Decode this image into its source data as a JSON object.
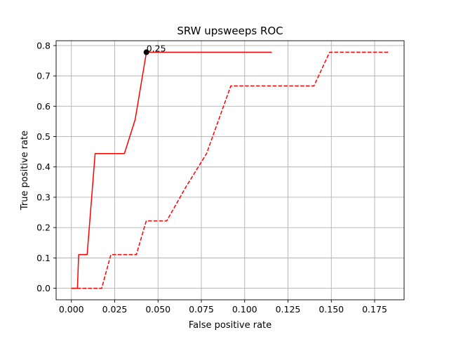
{
  "chart_data": {
    "type": "line",
    "title": "SRW upsweeps ROC",
    "xlabel": "False positive rate",
    "ylabel": "True positive rate",
    "xlim": [
      -0.0088,
      0.192
    ],
    "ylim": [
      -0.038,
      0.816
    ],
    "grid": true,
    "xticks": [
      0.0,
      0.025,
      0.05,
      0.075,
      0.1,
      0.125,
      0.15,
      0.175
    ],
    "xtick_labels": [
      "0.000",
      "0.025",
      "0.050",
      "0.075",
      "0.100",
      "0.125",
      "0.150",
      "0.175"
    ],
    "yticks": [
      0.0,
      0.1,
      0.2,
      0.3,
      0.4,
      0.5,
      0.6,
      0.7,
      0.8
    ],
    "ytick_labels": [
      "0.0",
      "0.1",
      "0.2",
      "0.3",
      "0.4",
      "0.5",
      "0.6",
      "0.7",
      "0.8"
    ],
    "series": [
      {
        "style": "solid",
        "color": "#ff0000",
        "x": [
          0.0,
          0.0035,
          0.0042,
          0.0091,
          0.0137,
          0.0306,
          0.0368,
          0.0433,
          0.0438,
          0.1157
        ],
        "y": [
          0.0,
          0.0,
          0.111,
          0.111,
          0.444,
          0.444,
          0.556,
          0.778,
          0.778,
          0.778
        ]
      },
      {
        "style": "dashed",
        "color": "#ff0000",
        "x": [
          0.0,
          0.0175,
          0.0228,
          0.0375,
          0.0432,
          0.055,
          0.066,
          0.078,
          0.092,
          0.14,
          0.149,
          0.183
        ],
        "y": [
          0.0,
          0.0,
          0.111,
          0.111,
          0.222,
          0.222,
          0.333,
          0.444,
          0.667,
          0.667,
          0.778,
          0.778
        ]
      }
    ],
    "annotations": [
      {
        "x": 0.0433,
        "y": 0.778,
        "text": "0.25",
        "marker": "dot",
        "color": "#000000"
      }
    ]
  }
}
